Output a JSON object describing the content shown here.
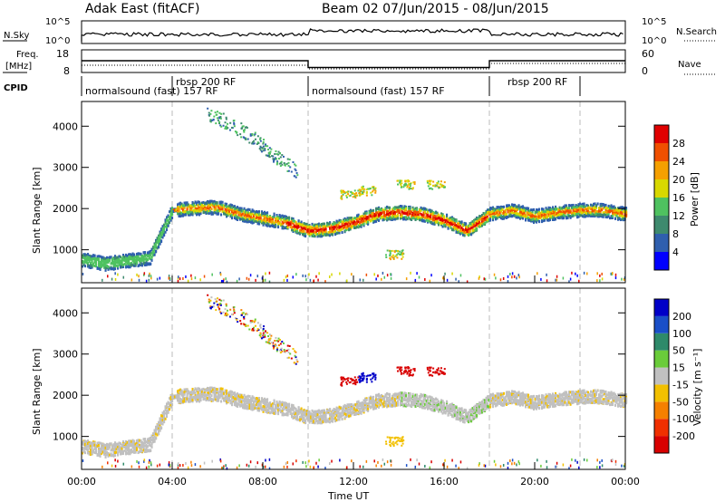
{
  "header": {
    "station": "Adak East (fitACF)",
    "beam_info": "Beam 02  07/Jun/2015 - 08/Jun/2015"
  },
  "strips": {
    "nsky_label": "N.Sky",
    "nsky_ticks": [
      "10^5",
      "10^0"
    ],
    "nsearch_label": "N.Search",
    "nsearch_ticks": [
      "10^5",
      "10^0"
    ],
    "freq_label": "Freq.",
    "freq_unit": "[MHz]",
    "freq_ticks": [
      "18",
      "8"
    ],
    "nave_label": "Nave",
    "nave_ticks": [
      "60",
      "0"
    ],
    "cpid_label": "CPID",
    "cpid_segments": [
      {
        "label": "normalsound (fast) 157 RF"
      },
      {
        "label": "rbsp 200 RF"
      },
      {
        "label": "normalsound (fast) 157 RF"
      },
      {
        "label": "rbsp 200 RF"
      }
    ]
  },
  "axes": {
    "ylabel": "Slant Range [km]",
    "xlabel": "Time UT",
    "y_ticks": [
      "1000",
      "2000",
      "3000",
      "4000"
    ],
    "x_ticks": [
      "00:00",
      "04:00",
      "08:00",
      "12:00",
      "16:00",
      "20:00",
      "00:00"
    ]
  },
  "power_bar": {
    "title": "Power [dB]",
    "ticks": [
      "4",
      "8",
      "12",
      "16",
      "20",
      "24",
      "28"
    ],
    "colors": [
      "#0000ff",
      "#2f5fae",
      "#3e8a6e",
      "#4fc260",
      "#d8d800",
      "#f5a000",
      "#f05000",
      "#e00000"
    ]
  },
  "velocity_bar": {
    "title": "Velocity [m s⁻¹]",
    "ticks": [
      "200",
      "100",
      "50",
      "15",
      "-15",
      "-50",
      "-100",
      "-200"
    ],
    "colors": [
      "#0000c8",
      "#1a4fc8",
      "#2e8a6a",
      "#6acc3a",
      "#c0c0c0",
      "#f2c000",
      "#f58000",
      "#f03000",
      "#d80000"
    ]
  },
  "chart_data": {
    "type": "heatmap",
    "x_unit": "hours UT",
    "xlim": [
      0,
      24
    ],
    "ylim": [
      200,
      4600
    ],
    "cpid_boundaries_h": [
      4,
      10,
      18,
      22
    ],
    "freq_step_h": [
      [
        0,
        13.2
      ],
      [
        10,
        10.2
      ],
      [
        18,
        13.2
      ],
      [
        24,
        13.2
      ]
    ],
    "ground_scatter_band": [
      [
        0.0,
        750
      ],
      [
        1.0,
        650
      ],
      [
        2.0,
        720
      ],
      [
        3.0,
        800
      ],
      [
        4.0,
        1950
      ],
      [
        5.0,
        2000
      ],
      [
        6.0,
        2020
      ],
      [
        7.0,
        1850
      ],
      [
        8.0,
        1750
      ],
      [
        9.0,
        1650
      ],
      [
        10.0,
        1450
      ],
      [
        11.0,
        1500
      ],
      [
        12.0,
        1650
      ],
      [
        13.0,
        1850
      ],
      [
        14.0,
        1900
      ],
      [
        15.0,
        1850
      ],
      [
        16.0,
        1700
      ],
      [
        17.0,
        1450
      ],
      [
        18.0,
        1850
      ],
      [
        19.0,
        1950
      ],
      [
        20.0,
        1800
      ],
      [
        21.0,
        1900
      ],
      [
        22.0,
        1950
      ],
      [
        23.0,
        1950
      ],
      [
        24.0,
        1850
      ]
    ],
    "upper_echo_track": [
      [
        5.5,
        4300
      ],
      [
        6.5,
        4100
      ],
      [
        7.5,
        3750
      ],
      [
        8.5,
        3300
      ],
      [
        9.5,
        2900
      ]
    ],
    "ionospheric_patches": [
      {
        "t": 11.8,
        "r": 2350,
        "v": -200
      },
      {
        "t": 12.6,
        "r": 2450,
        "v": 200
      },
      {
        "t": 14.3,
        "r": 2600,
        "v": -200
      },
      {
        "t": 15.6,
        "r": 2600,
        "v": -200
      },
      {
        "t": 13.8,
        "r": 900,
        "v": -50
      }
    ]
  }
}
